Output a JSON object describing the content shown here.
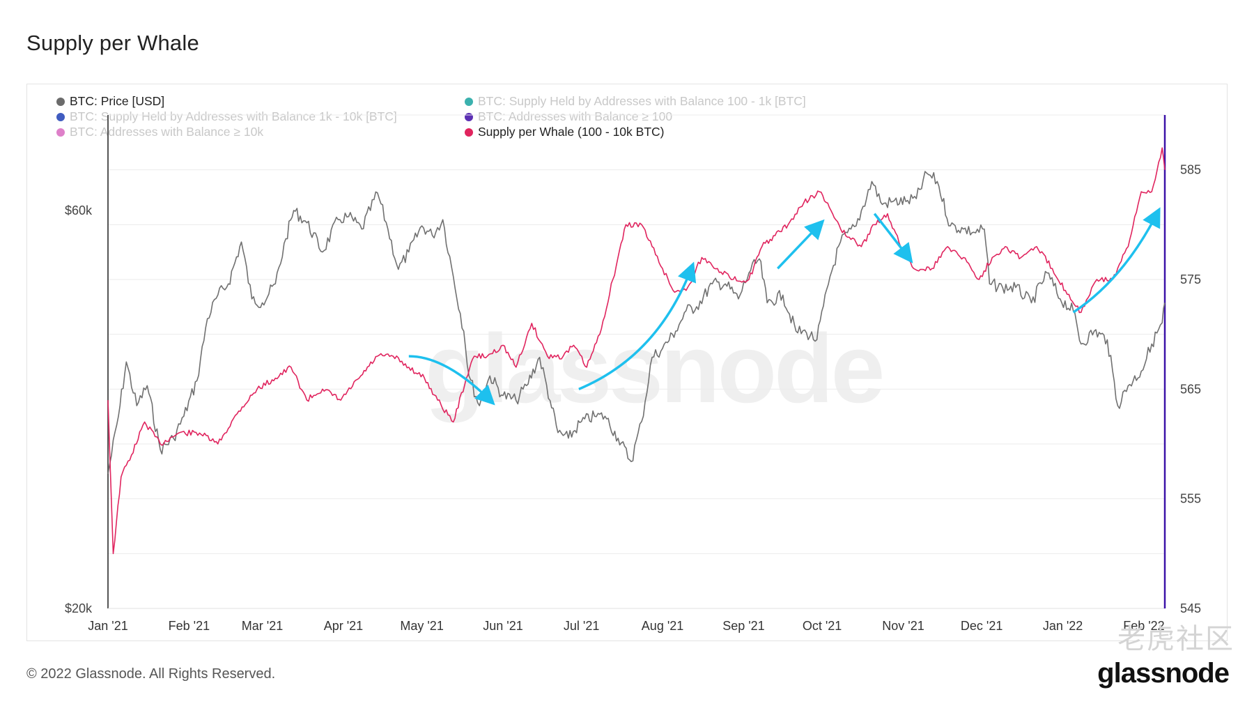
{
  "page": {
    "title": "Supply per Whale",
    "copyright": "© 2022 Glassnode. All Rights Reserved.",
    "logo": "glassnode",
    "watermark": "glassnode",
    "watermark_cn": "老虎社区"
  },
  "colors": {
    "price": "#707070",
    "supply_whale": "#e0245e",
    "arrow": "#1ec0ee",
    "latest_marker": "#3b12a8",
    "grid": "#ebebeb"
  },
  "chart_data": {
    "type": "line",
    "title": "Supply per Whale",
    "x_ticks": [
      "Jan '21",
      "Feb '21",
      "Mar '21",
      "Apr '21",
      "May '21",
      "Jun '21",
      "Jul '21",
      "Aug '21",
      "Sep '21",
      "Oct '21",
      "Nov '21",
      "Dec '21",
      "Jan '22",
      "Feb '22"
    ],
    "y_left_ticks": [
      "$60k",
      "$20k"
    ],
    "y_left_scale": "log",
    "y_right_ticks": [
      "585",
      "575",
      "565",
      "555",
      "545"
    ],
    "y_right_range": [
      545,
      590
    ],
    "grid": true,
    "legend_position": "top-left",
    "legend": [
      {
        "label": "BTC: Price [USD]",
        "color": "#6b6b6b",
        "active": true
      },
      {
        "label": "BTC: Supply Held by Addresses with Balance 100 - 1k [BTC]",
        "color": "#19a3a0",
        "active": false
      },
      {
        "label": "BTC: Supply Held by Addresses with Balance 1k - 10k [BTC]",
        "color": "#1f3fb5",
        "active": false
      },
      {
        "label": "BTC: Addresses with Balance ≥ 100",
        "color": "#3e0aa6",
        "active": false
      },
      {
        "label": "BTC: Addresses with Balance ≥ 10k",
        "color": "#d86ac0",
        "active": false
      },
      {
        "label": "Supply per Whale (100 - 10k BTC)",
        "color": "#e0245e",
        "active": true
      }
    ],
    "series": [
      {
        "name": "BTC: Price [USD]",
        "axis": "left",
        "x": [
          "2021-01-01",
          "2021-01-05",
          "2021-01-08",
          "2021-01-12",
          "2021-01-16",
          "2021-01-21",
          "2021-01-26",
          "2021-01-30",
          "2021-02-04",
          "2021-02-08",
          "2021-02-12",
          "2021-02-16",
          "2021-02-21",
          "2021-02-25",
          "2021-03-01",
          "2021-03-06",
          "2021-03-10",
          "2021-03-13",
          "2021-03-18",
          "2021-03-24",
          "2021-03-30",
          "2021-04-03",
          "2021-04-08",
          "2021-04-14",
          "2021-04-18",
          "2021-04-22",
          "2021-04-26",
          "2021-05-01",
          "2021-05-05",
          "2021-05-09",
          "2021-05-13",
          "2021-05-17",
          "2021-05-19",
          "2021-05-23",
          "2021-05-27",
          "2021-06-01",
          "2021-06-06",
          "2021-06-10",
          "2021-06-15",
          "2021-06-19",
          "2021-06-22",
          "2021-06-26",
          "2021-07-01",
          "2021-07-06",
          "2021-07-10",
          "2021-07-15",
          "2021-07-20",
          "2021-07-24",
          "2021-07-28",
          "2021-08-01",
          "2021-08-06",
          "2021-08-10",
          "2021-08-14",
          "2021-08-20",
          "2021-08-25",
          "2021-08-30",
          "2021-09-03",
          "2021-09-07",
          "2021-09-10",
          "2021-09-16",
          "2021-09-21",
          "2021-09-25",
          "2021-09-29",
          "2021-10-04",
          "2021-10-08",
          "2021-10-14",
          "2021-10-20",
          "2021-10-24",
          "2021-10-28",
          "2021-11-02",
          "2021-11-06",
          "2021-11-10",
          "2021-11-14",
          "2021-11-19",
          "2021-11-24",
          "2021-11-28",
          "2021-12-02",
          "2021-12-04",
          "2021-12-09",
          "2021-12-14",
          "2021-12-20",
          "2021-12-26",
          "2021-12-31",
          "2022-01-05",
          "2022-01-08",
          "2022-01-13",
          "2022-01-18",
          "2022-01-22",
          "2022-01-26",
          "2022-01-31",
          "2022-02-04",
          "2022-02-08",
          "2022-02-09"
        ],
        "values": [
          29000,
          34000,
          39500,
          35000,
          37000,
          31000,
          32000,
          34000,
          37500,
          44500,
          47500,
          49000,
          55000,
          47000,
          46500,
          49000,
          55500,
          60000,
          58000,
          53500,
          58500,
          59000,
          57000,
          63000,
          57000,
          51000,
          53500,
          57500,
          56000,
          58500,
          50000,
          43000,
          38000,
          35000,
          38000,
          36000,
          35500,
          37000,
          40000,
          35500,
          32500,
          32000,
          33500,
          34000,
          34000,
          32000,
          30000,
          33500,
          40000,
          41000,
          43000,
          45500,
          46000,
          49000,
          49000,
          47000,
          50500,
          52500,
          46500,
          47500,
          43000,
          42800,
          42000,
          50000,
          55000,
          57500,
          65000,
          61000,
          61500,
          61500,
          62000,
          66500,
          65000,
          57500,
          57000,
          56500,
          57000,
          49000,
          48500,
          48500,
          46500,
          50500,
          47000,
          45500,
          41500,
          43000,
          42000,
          35000,
          37000,
          38500,
          41500,
          44000,
          46500
        ]
      },
      {
        "name": "Supply per Whale (100 - 10k BTC)",
        "axis": "right",
        "x": [
          "2021-01-01",
          "2021-01-03",
          "2021-01-06",
          "2021-01-10",
          "2021-01-15",
          "2021-01-21",
          "2021-01-28",
          "2021-02-05",
          "2021-02-12",
          "2021-02-20",
          "2021-02-27",
          "2021-03-06",
          "2021-03-12",
          "2021-03-18",
          "2021-03-24",
          "2021-03-31",
          "2021-04-07",
          "2021-04-14",
          "2021-04-20",
          "2021-04-26",
          "2021-05-02",
          "2021-05-07",
          "2021-05-13",
          "2021-05-18",
          "2021-05-21",
          "2021-05-26",
          "2021-06-01",
          "2021-06-06",
          "2021-06-12",
          "2021-06-18",
          "2021-06-24",
          "2021-06-28",
          "2021-07-03",
          "2021-07-08",
          "2021-07-13",
          "2021-07-18",
          "2021-07-24",
          "2021-07-28",
          "2021-08-01",
          "2021-08-05",
          "2021-08-10",
          "2021-08-16",
          "2021-08-22",
          "2021-08-28",
          "2021-09-03",
          "2021-09-08",
          "2021-09-13",
          "2021-09-18",
          "2021-09-24",
          "2021-09-30",
          "2021-10-05",
          "2021-10-10",
          "2021-10-16",
          "2021-10-21",
          "2021-10-26",
          "2021-10-31",
          "2021-11-05",
          "2021-11-12",
          "2021-11-18",
          "2021-11-24",
          "2021-11-30",
          "2021-12-05",
          "2021-12-10",
          "2021-12-16",
          "2021-12-22",
          "2021-12-28",
          "2022-01-02",
          "2022-01-08",
          "2022-01-14",
          "2022-01-20",
          "2022-01-26",
          "2022-01-31",
          "2022-02-04",
          "2022-02-08",
          "2022-02-09"
        ],
        "values": [
          564,
          550,
          557,
          559,
          562,
          560,
          561,
          561,
          560,
          563,
          565,
          566,
          567,
          564,
          565,
          564,
          566,
          568,
          568,
          567,
          566,
          564,
          562,
          566,
          568,
          568,
          569,
          567,
          571,
          568,
          568,
          569,
          567,
          570,
          575,
          580,
          580,
          578,
          576,
          574,
          574,
          577,
          576,
          575,
          575,
          578,
          579,
          580,
          582,
          583,
          581,
          579,
          578,
          580,
          581,
          578,
          576,
          576,
          578,
          577,
          575,
          577,
          578,
          577,
          578,
          576,
          574,
          572,
          575,
          575,
          578,
          583,
          583,
          587,
          585
        ]
      }
    ]
  }
}
